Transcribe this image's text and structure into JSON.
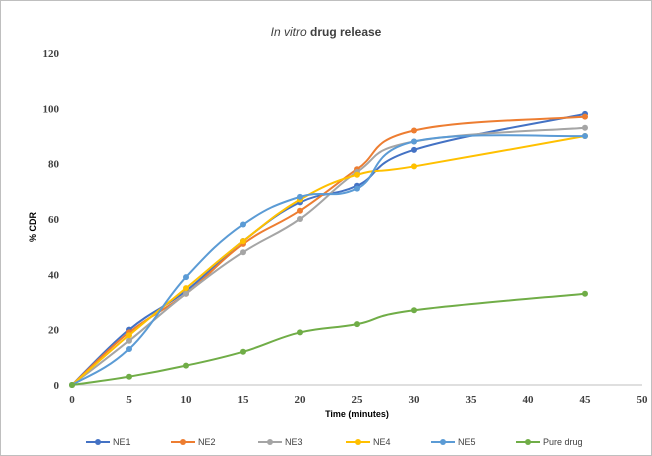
{
  "chart_data": {
    "type": "line",
    "title_italic": "In vitro",
    "title_rest": " drug release",
    "xlabel": "Time  (minutes)",
    "ylabel": "% CDR",
    "xlim": [
      0,
      50
    ],
    "ylim": [
      0,
      120
    ],
    "xticks": [
      0,
      5,
      10,
      15,
      20,
      25,
      30,
      35,
      40,
      45,
      50
    ],
    "yticks": [
      0,
      20,
      40,
      60,
      80,
      100,
      120
    ],
    "grid": false,
    "legend_position": "bottom",
    "x": [
      0,
      5,
      10,
      15,
      20,
      25,
      30,
      45
    ],
    "series": [
      {
        "name": "NE1",
        "color": "#4472c4",
        "values": [
          0,
          20,
          34,
          52,
          66,
          72,
          85,
          98
        ]
      },
      {
        "name": "NE2",
        "color": "#ed7d31",
        "values": [
          0,
          19,
          33,
          51,
          63,
          78,
          92,
          97
        ]
      },
      {
        "name": "NE3",
        "color": "#a5a5a5",
        "values": [
          0,
          16,
          33,
          48,
          60,
          77,
          88,
          93
        ]
      },
      {
        "name": "NE4",
        "color": "#ffc000",
        "values": [
          0,
          18,
          35,
          52,
          67,
          76,
          79,
          90
        ]
      },
      {
        "name": "NE5",
        "color": "#5b9bd5",
        "values": [
          0,
          13,
          39,
          58,
          68,
          71,
          88,
          90
        ]
      },
      {
        "name": "Pure drug",
        "color": "#70ad47",
        "values": [
          0,
          3,
          7,
          12,
          19,
          22,
          27,
          33
        ]
      }
    ]
  }
}
